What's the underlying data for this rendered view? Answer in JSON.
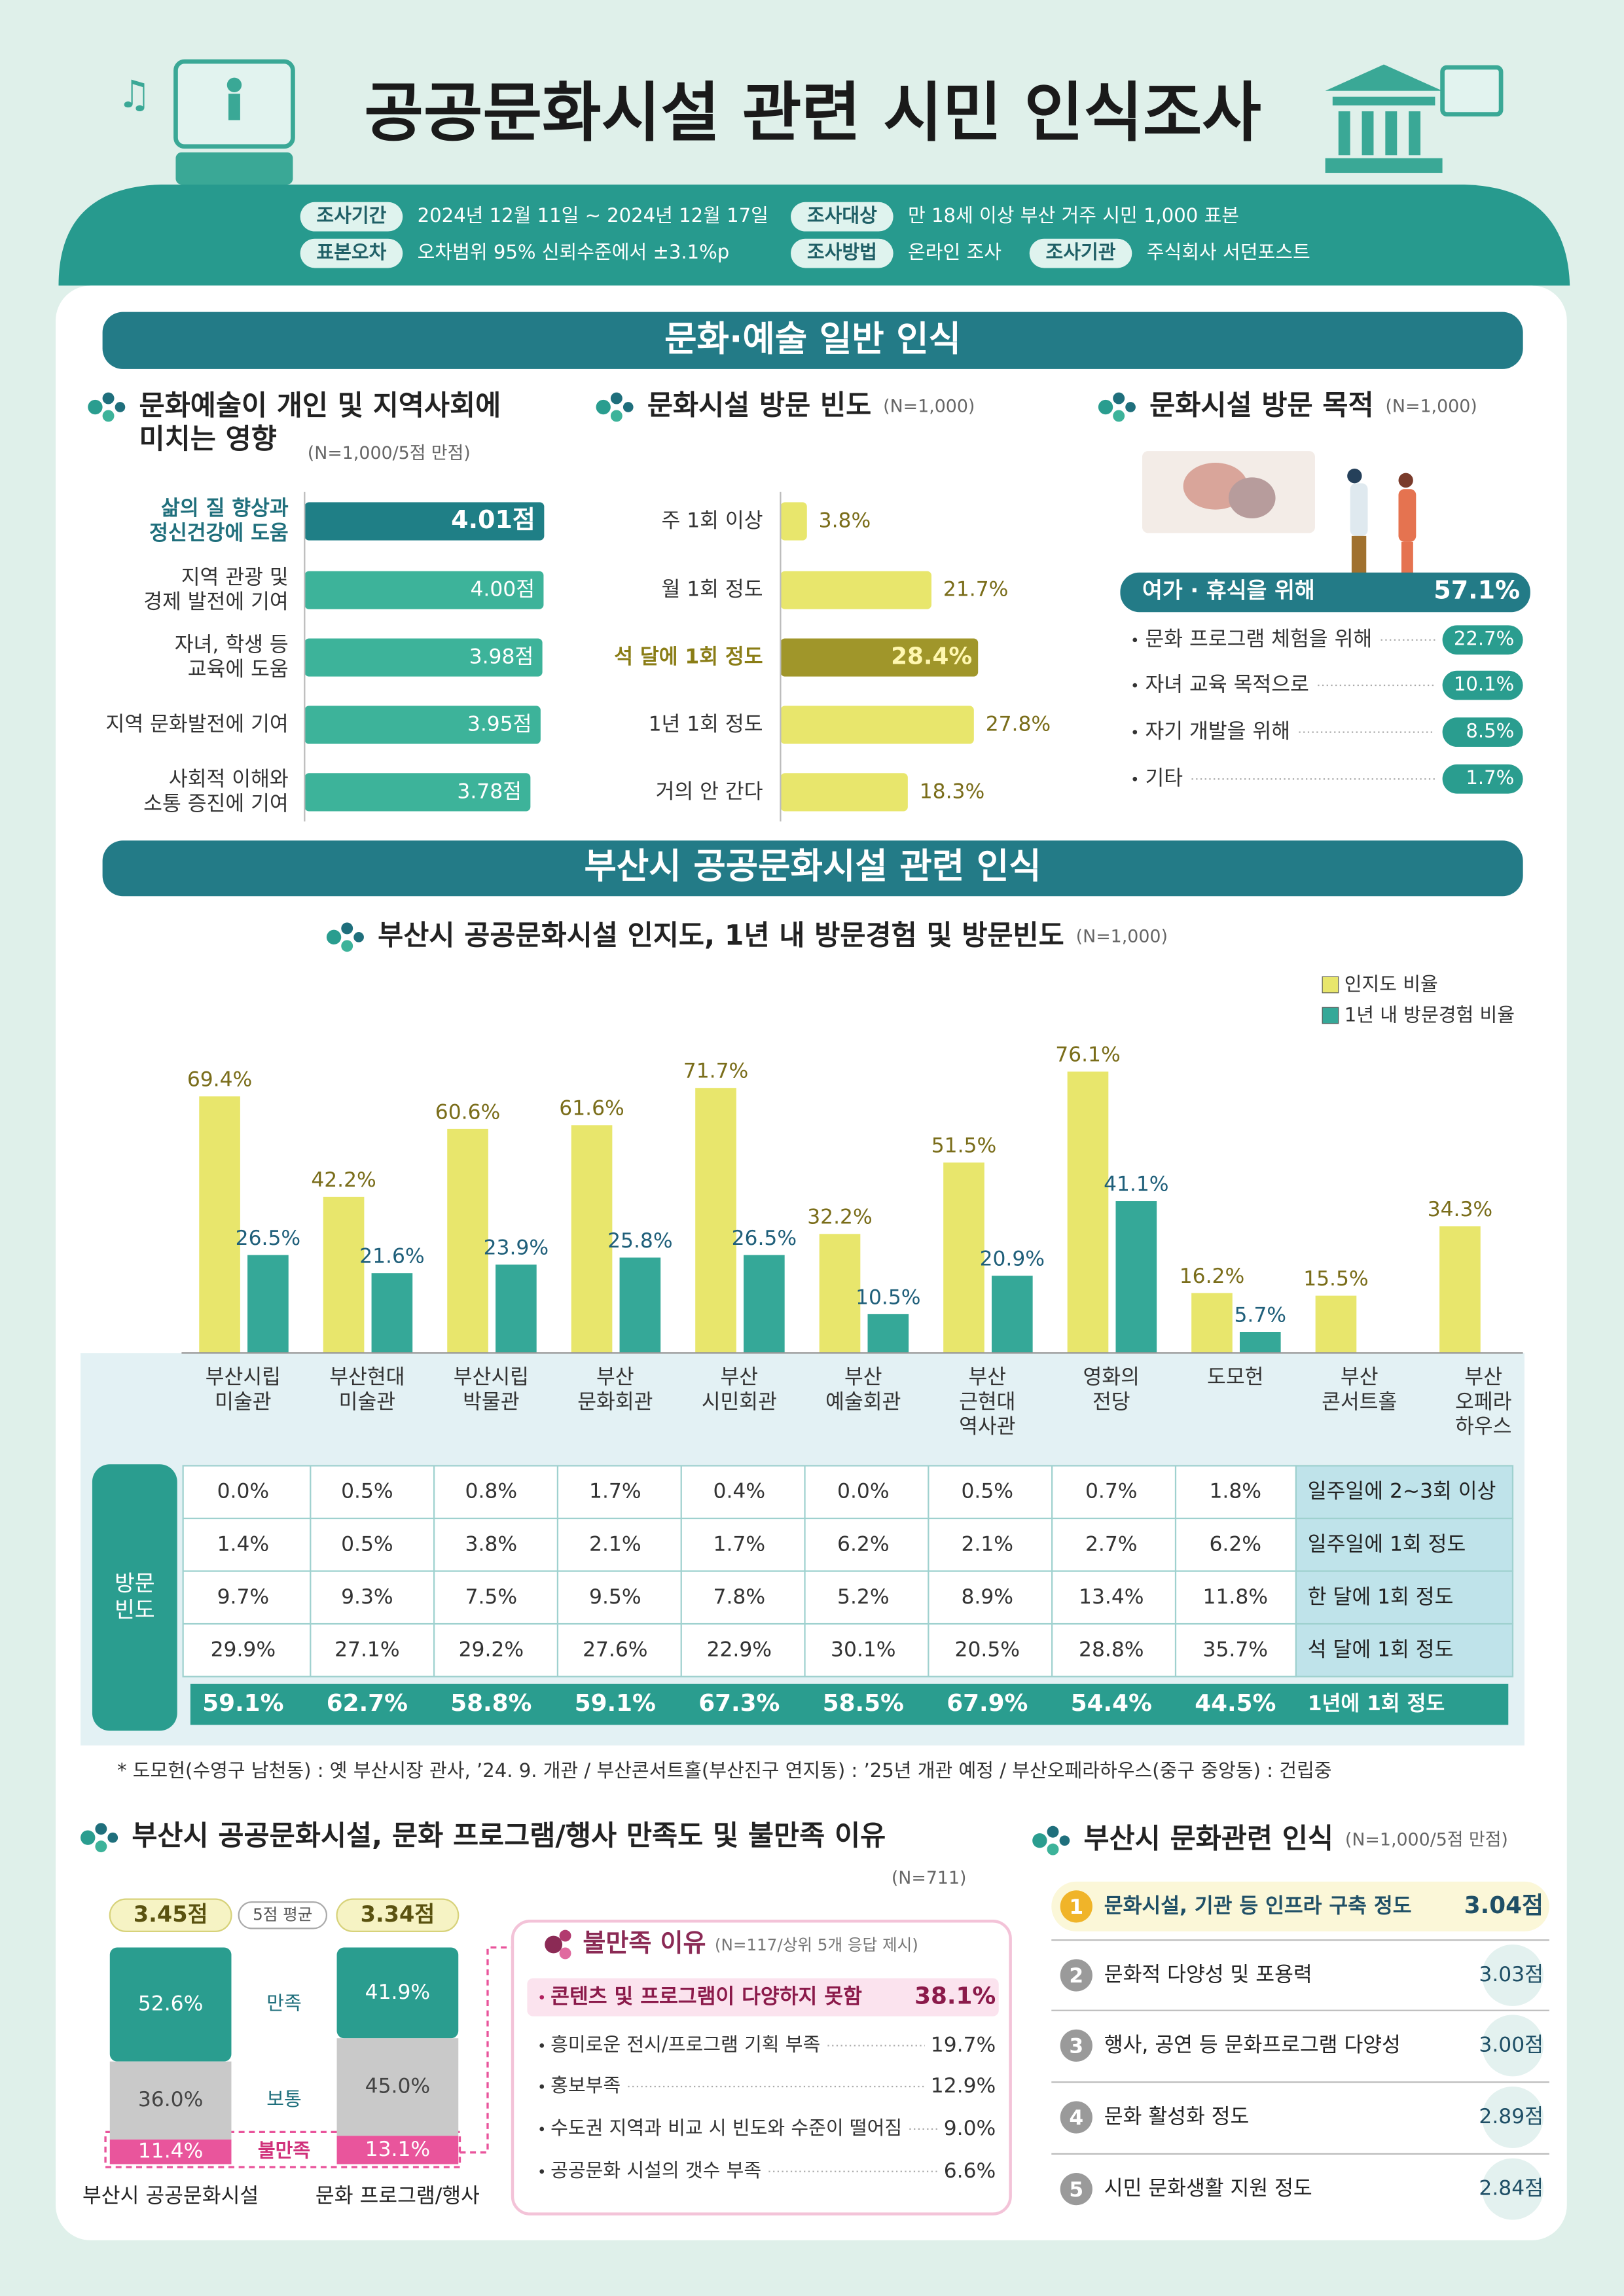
{
  "title": "공공문화시설 관련 시민 인식조사",
  "survey_info": [
    {
      "label": "조사기간",
      "text": "2024년 12월 11일 ~ 2024년 12월 17일"
    },
    {
      "label": "조사대상",
      "text": "만 18세 이상 부산 거주 시민 1,000 표본"
    },
    {
      "label": "표본오차",
      "text": "오차범위 95% 신뢰수준에서 ±3.1%p"
    },
    {
      "label": "조사방법",
      "text": "온라인 조사"
    },
    {
      "label": "조사기관",
      "text": "주식회사 서던포스트"
    }
  ],
  "sections": [
    "문화·예술 일반 인식",
    "부산시 공공문화시설 관련 인식"
  ],
  "chart_data": [
    {
      "type": "bar",
      "orientation": "horizontal",
      "title": "문화예술이 개인 및 지역사회에\n미치는 영향",
      "subtitle": "(N=1,000/5점 만점)",
      "categories": [
        "삶의 질 향상과\n정신건강에 도움",
        "지역 관광 및\n경제 발전에 기여",
        "자녀, 학생 등\n교육에 도움",
        "지역 문화발전에 기여",
        "사회적 이해와\n소통 증진에 기여"
      ],
      "values": [
        4.01,
        4.0,
        3.98,
        3.95,
        3.78
      ],
      "value_labels": [
        "4.01점",
        "4.00점",
        "3.98점",
        "3.95점",
        "3.78점"
      ],
      "xlim": [
        0,
        5
      ],
      "color": "#3db39a",
      "highlight_color": "#1f7f86",
      "highlight": 0
    },
    {
      "type": "bar",
      "orientation": "horizontal",
      "title": "문화시설 방문 빈도",
      "subtitle": "(N=1,000)",
      "categories": [
        "주 1회 이상",
        "월 1회 정도",
        "석 달에 1회 정도",
        "1년 1회 정도",
        "거의 안 간다"
      ],
      "values": [
        3.8,
        21.7,
        28.4,
        27.8,
        18.3
      ],
      "value_labels": [
        "3.8%",
        "21.7%",
        "28.4%",
        "27.8%",
        "18.3%"
      ],
      "xlim": [
        0,
        40
      ],
      "color": "#e8e66c",
      "highlight_color": "#a0962a",
      "highlight": 2
    },
    {
      "type": "list",
      "title": "문화시설 방문 목적",
      "subtitle": "(N=1,000)",
      "categories": [
        "여가 · 휴식을 위해",
        "문화 프로그램 체험을 위해",
        "자녀 교육 목적으로",
        "자기 개발을 위해",
        "기타"
      ],
      "values": [
        57.1,
        22.7,
        10.1,
        8.5,
        1.7
      ],
      "value_labels": [
        "57.1%",
        "22.7%",
        "10.1%",
        "8.5%",
        "1.7%"
      ]
    },
    {
      "type": "bar",
      "title": "부산시 공공문화시설 인지도, 1년 내 방문경험 및 방문빈도",
      "subtitle": "(N=1,000)",
      "categories": [
        "부산시립\n미술관",
        "부산현대\n미술관",
        "부산시립\n박물관",
        "부산\n문화회관",
        "부산\n시민회관",
        "부산\n예술회관",
        "부산\n근현대\n역사관",
        "영화의\n전당",
        "도모헌",
        "부산\n콘서트홀",
        "부산\n오페라\n하우스"
      ],
      "series": [
        {
          "name": "인지도 비율",
          "color": "#e8e66c",
          "values": [
            69.4,
            42.2,
            60.6,
            61.6,
            71.7,
            32.2,
            51.5,
            76.1,
            16.2,
            15.5,
            34.3
          ],
          "value_labels": [
            "69.4%",
            "42.2%",
            "60.6%",
            "61.6%",
            "71.7%",
            "32.2%",
            "51.5%",
            "76.1%",
            "16.2%",
            "15.5%",
            "34.3%"
          ]
        },
        {
          "name": "1년 내 방문경험 비율",
          "color": "#35a898",
          "values": [
            26.5,
            21.6,
            23.9,
            25.8,
            26.5,
            10.5,
            20.9,
            41.1,
            5.7,
            null,
            null
          ],
          "value_labels": [
            "26.5%",
            "21.6%",
            "23.9%",
            "25.8%",
            "26.5%",
            "10.5%",
            "20.9%",
            "41.1%",
            "5.7%",
            null,
            null
          ]
        }
      ],
      "ylim": [
        0,
        80
      ],
      "legend": "top-right"
    },
    {
      "type": "stacked-bar",
      "title": "부산시 공공문화시설, 문화 프로그램/행사 만족도 및 불만족 이유",
      "subtitle": "(N=711)",
      "categories": [
        "부산시 공공문화시설",
        "문화 프로그램/행사"
      ],
      "series": [
        {
          "name": "만족",
          "color": "#2a9d8f",
          "values": [
            52.6,
            41.9
          ],
          "value_labels": [
            "52.6%",
            "41.9%"
          ]
        },
        {
          "name": "보통",
          "color": "#c9c9c9",
          "values": [
            36.0,
            45.0
          ],
          "value_labels": [
            "36.0%",
            "45.0%"
          ]
        },
        {
          "name": "불만족",
          "color": "#e9559c",
          "values": [
            11.4,
            13.1
          ],
          "value_labels": [
            "11.4%",
            "13.1%"
          ]
        }
      ],
      "ylim": [
        0,
        100
      ],
      "averages": {
        "label": "5점 평균",
        "values": [
          3.45,
          3.34
        ],
        "value_labels": [
          "3.45점",
          "3.34점"
        ]
      }
    },
    {
      "type": "list",
      "title": "불만족 이유",
      "subtitle": "(N=117/상위 5개 응답 제시)",
      "categories": [
        "콘텐츠 및 프로그램이 다양하지 못함",
        "흥미로운 전시/프로그램 기획 부족",
        "홍보부족",
        "수도권 지역과 비교 시 빈도와 수준이 떨어짐",
        "공공문화 시설의 갯수 부족"
      ],
      "values": [
        38.1,
        19.7,
        12.9,
        9.0,
        6.6
      ],
      "value_labels": [
        "38.1%",
        "19.7%",
        "12.9%",
        "9.0%",
        "6.6%"
      ]
    },
    {
      "type": "list",
      "title": "부산시 문화관련 인식",
      "subtitle": "(N=1,000/5점 만점)",
      "ranks": [
        1,
        2,
        3,
        4,
        5
      ],
      "categories": [
        "문화시설, 기관 등 인프라 구축 정도",
        "문화적 다양성 및 포용력",
        "행사, 공연 등 문화프로그램 다양성",
        "문화 활성화 정도",
        "시민 문화생활 지원 정도"
      ],
      "values": [
        3.04,
        3.03,
        3.0,
        2.89,
        2.84
      ],
      "value_labels": [
        "3.04점",
        "3.03점",
        "3.00점",
        "2.89점",
        "2.84점"
      ]
    }
  ],
  "visit_table": {
    "header": "방문\n빈도",
    "rows": [
      {
        "label": "일주일에 2~3회 이상",
        "cells": [
          "0.0%",
          "0.5%",
          "0.8%",
          "1.7%",
          "0.4%",
          "0.0%",
          "0.5%",
          "0.7%",
          "1.8%"
        ]
      },
      {
        "label": "일주일에 1회 정도",
        "cells": [
          "1.4%",
          "0.5%",
          "3.8%",
          "2.1%",
          "1.7%",
          "6.2%",
          "2.1%",
          "2.7%",
          "6.2%"
        ]
      },
      {
        "label": "한 달에 1회 정도",
        "cells": [
          "9.7%",
          "9.3%",
          "7.5%",
          "9.5%",
          "7.8%",
          "5.2%",
          "8.9%",
          "13.4%",
          "11.8%"
        ]
      },
      {
        "label": "석 달에 1회 정도",
        "cells": [
          "29.9%",
          "27.1%",
          "29.2%",
          "27.6%",
          "22.9%",
          "30.1%",
          "20.5%",
          "28.8%",
          "35.7%"
        ]
      },
      {
        "label": "1년에 1회 정도",
        "cells": [
          "59.1%",
          "62.7%",
          "58.8%",
          "59.1%",
          "67.3%",
          "58.5%",
          "67.9%",
          "54.4%",
          "44.5%"
        ]
      }
    ]
  },
  "note": "* 도모헌(수영구 남천동) : 옛 부산시장 관사, ’24. 9. 개관 / 부산콘서트홀(부산진구 연지동) : ’25년 개관 예정 / 부산오페라하우스(중구 중앙동) : 건립중"
}
